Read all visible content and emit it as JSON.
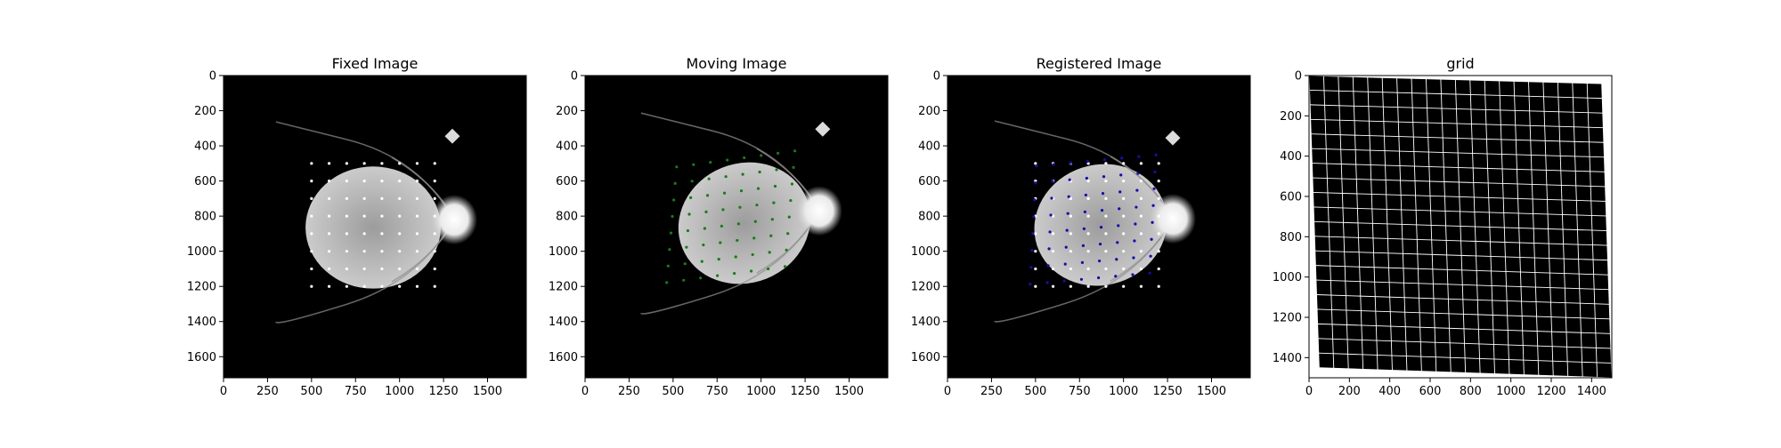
{
  "chart_data": [
    {
      "type": "image",
      "title": "Fixed Image",
      "xlim": [
        0,
        1720
      ],
      "ylim": [
        1720,
        0
      ],
      "xticks": [
        0,
        250,
        500,
        750,
        1000,
        1250,
        1500
      ],
      "yticks": [
        0,
        200,
        400,
        600,
        800,
        1000,
        1200,
        1400,
        1600
      ],
      "xtick_labels": [
        "0",
        "250",
        "500",
        "750",
        "1000",
        "1250",
        "1500"
      ],
      "ytick_labels": [
        "0",
        "200",
        "400",
        "600",
        "800",
        "1000",
        "1200",
        "1400",
        "1600"
      ],
      "fundus": {
        "cx": 850,
        "cy": 865,
        "rx": 768,
        "ry": 695,
        "rotation": 0
      },
      "optic_disc": {
        "x": 1310,
        "y": 820
      },
      "notch": {
        "x": 1300,
        "y": 345
      },
      "points": [
        {
          "color": "#ffffff",
          "rows": [
            500,
            600,
            700,
            800,
            900,
            1000,
            1100,
            1200
          ],
          "cols": [
            500,
            600,
            700,
            800,
            900,
            1000,
            1100,
            1200
          ]
        }
      ]
    },
    {
      "type": "image",
      "title": "Moving Image",
      "xlim": [
        0,
        1720
      ],
      "ylim": [
        1720,
        0
      ],
      "xticks": [
        0,
        250,
        500,
        750,
        1000,
        1250,
        1500
      ],
      "yticks": [
        0,
        200,
        400,
        600,
        800,
        1000,
        1200,
        1400,
        1600
      ],
      "xtick_labels": [
        "0",
        "250",
        "500",
        "750",
        "1000",
        "1250",
        "1500"
      ],
      "ytick_labels": [
        "0",
        "200",
        "400",
        "600",
        "800",
        "1000",
        "1200",
        "1400",
        "1600"
      ],
      "fundus": {
        "cx": 905,
        "cy": 840,
        "rx": 760,
        "ry": 680,
        "rotation": -22
      },
      "optic_disc": {
        "x": 1330,
        "y": 770
      },
      "notch": {
        "x": 1350,
        "y": 305
      },
      "points": [
        {
          "color": "#1a7a1a",
          "warp": {
            "ax": 0.96,
            "bx": -0.08,
            "cx": 80,
            "ay": -0.13,
            "by": 0.94,
            "cy": 115
          },
          "rows": [
            500,
            600,
            700,
            800,
            900,
            1000,
            1100,
            1200
          ],
          "cols": [
            500,
            600,
            700,
            800,
            900,
            1000,
            1100,
            1200
          ]
        }
      ]
    },
    {
      "type": "image",
      "title": "Registered Image",
      "xlim": [
        0,
        1720
      ],
      "ylim": [
        1720,
        0
      ],
      "xticks": [
        0,
        250,
        500,
        750,
        1000,
        1250,
        1500
      ],
      "yticks": [
        0,
        200,
        400,
        600,
        800,
        1000,
        1200,
        1400,
        1600
      ],
      "xtick_labels": [
        "0",
        "250",
        "500",
        "750",
        "1000",
        "1250",
        "1500"
      ],
      "ytick_labels": [
        "0",
        "200",
        "400",
        "600",
        "800",
        "1000",
        "1200",
        "1400",
        "1600"
      ],
      "fundus": {
        "cx": 870,
        "cy": 850,
        "rx": 760,
        "ry": 685,
        "rotation": -18
      },
      "optic_disc": {
        "x": 1280,
        "y": 815
      },
      "notch": {
        "x": 1280,
        "y": 355
      },
      "points": [
        {
          "color": "#ffffff",
          "rows": [
            500,
            600,
            700,
            800,
            900,
            1000,
            1100,
            1200
          ],
          "cols": [
            500,
            600,
            700,
            800,
            900,
            1000,
            1100,
            1200
          ]
        },
        {
          "color": "#1010aa",
          "warp": {
            "ax": 0.97,
            "bx": -0.05,
            "cx": 45,
            "ay": -0.09,
            "by": 0.96,
            "cy": 80
          },
          "rows": [
            500,
            600,
            700,
            800,
            900,
            1000,
            1100,
            1200
          ],
          "cols": [
            500,
            600,
            700,
            800,
            900,
            1000,
            1100,
            1200
          ]
        }
      ]
    },
    {
      "type": "grid",
      "title": "grid",
      "xlim": [
        0,
        1500
      ],
      "ylim": [
        1500,
        0
      ],
      "xticks": [
        0,
        200,
        400,
        600,
        800,
        1000,
        1200,
        1400
      ],
      "yticks": [
        0,
        200,
        400,
        600,
        800,
        1000,
        1200,
        1400
      ],
      "xtick_labels": [
        "0",
        "200",
        "400",
        "600",
        "800",
        "1000",
        "1200",
        "1400"
      ],
      "ytick_labels": [
        "0",
        "200",
        "400",
        "600",
        "800",
        "1000",
        "1200",
        "1400"
      ],
      "corners": {
        "tl": [
          0,
          0
        ],
        "tr": [
          1450,
          40
        ],
        "br": [
          1500,
          1500
        ],
        "bl": [
          50,
          1450
        ]
      },
      "grid_lines": 20,
      "line_color": "#ffffff",
      "background": "#000000"
    }
  ]
}
